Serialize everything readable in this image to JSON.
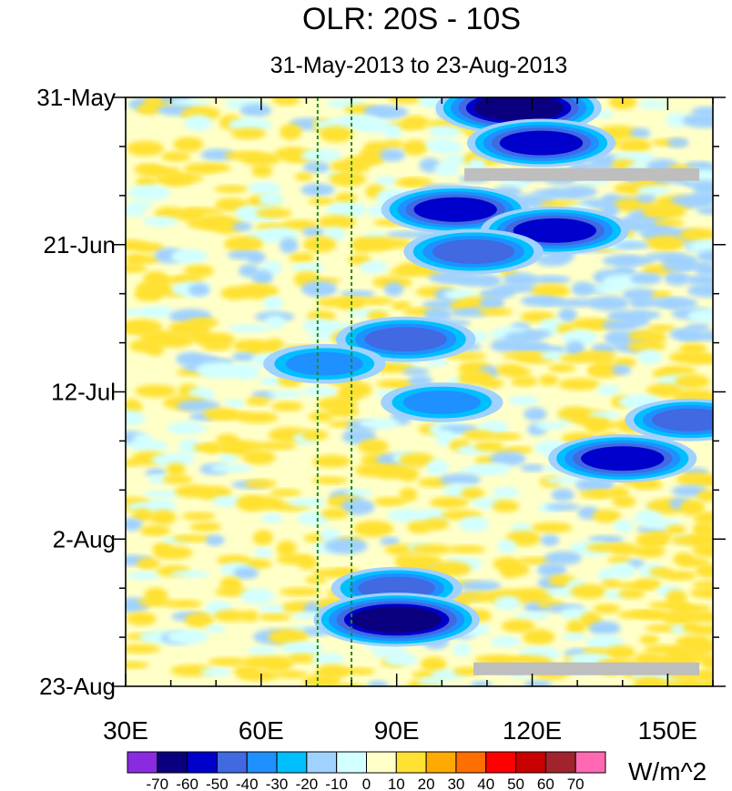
{
  "chart_data": {
    "type": "heatmap",
    "title": "OLR: 20S - 10S",
    "subtitle": "31-May-2013 to 23-Aug-2013",
    "xlim": [
      30,
      160
    ],
    "x_ticks": [
      {
        "value": 30,
        "label": "30E"
      },
      {
        "value": 60,
        "label": "60E"
      },
      {
        "value": 90,
        "label": "90E"
      },
      {
        "value": 120,
        "label": "120E"
      },
      {
        "value": 150,
        "label": "150E"
      }
    ],
    "y_day_range": [
      0,
      84
    ],
    "y_ticks": [
      {
        "day": 0,
        "label": "31-May"
      },
      {
        "day": 21,
        "label": "21-Jun"
      },
      {
        "day": 42,
        "label": "12-Jul"
      },
      {
        "day": 63,
        "label": "2-Aug"
      },
      {
        "day": 84,
        "label": "23-Aug"
      }
    ],
    "reference_lines_lon": [
      72.5,
      80
    ],
    "colorbar": {
      "unit": "W/m^2",
      "levels": [
        -70,
        -60,
        -50,
        -40,
        -30,
        -20,
        -10,
        0,
        10,
        20,
        30,
        40,
        50,
        60,
        70
      ],
      "colors": [
        "#8a2be2",
        "#0a007f",
        "#0000cd",
        "#4169e1",
        "#1e90ff",
        "#00bfff",
        "#a0d2ff",
        "#d2ffff",
        "#ffffc8",
        "#ffe132",
        "#ffaa00",
        "#ff6e00",
        "#ff0000",
        "#c80000",
        "#a0232d",
        "#ff69b4"
      ]
    },
    "convective_anomalies": [
      {
        "lon": 117,
        "day": 1.5,
        "value": -70
      },
      {
        "lon": 122,
        "day": 6.5,
        "value": -60
      },
      {
        "lon": 103,
        "day": 16,
        "value": -60
      },
      {
        "lon": 125,
        "day": 19,
        "value": -60
      },
      {
        "lon": 107,
        "day": 22,
        "value": -55
      },
      {
        "lon": 92,
        "day": 34.5,
        "value": -55
      },
      {
        "lon": 74,
        "day": 38,
        "value": -45
      },
      {
        "lon": 100,
        "day": 43.5,
        "value": -45
      },
      {
        "lon": 140,
        "day": 51.5,
        "value": -60
      },
      {
        "lon": 90,
        "day": 70,
        "value": -50
      },
      {
        "lon": 90,
        "day": 74.5,
        "value": -70
      },
      {
        "lon": 155,
        "day": 46,
        "value": -50
      }
    ],
    "missing_data": [
      {
        "lon_start": 105,
        "lon_end": 157,
        "day": 11
      },
      {
        "lon_start": 107,
        "lon_end": 157,
        "day": 81.5
      }
    ]
  }
}
